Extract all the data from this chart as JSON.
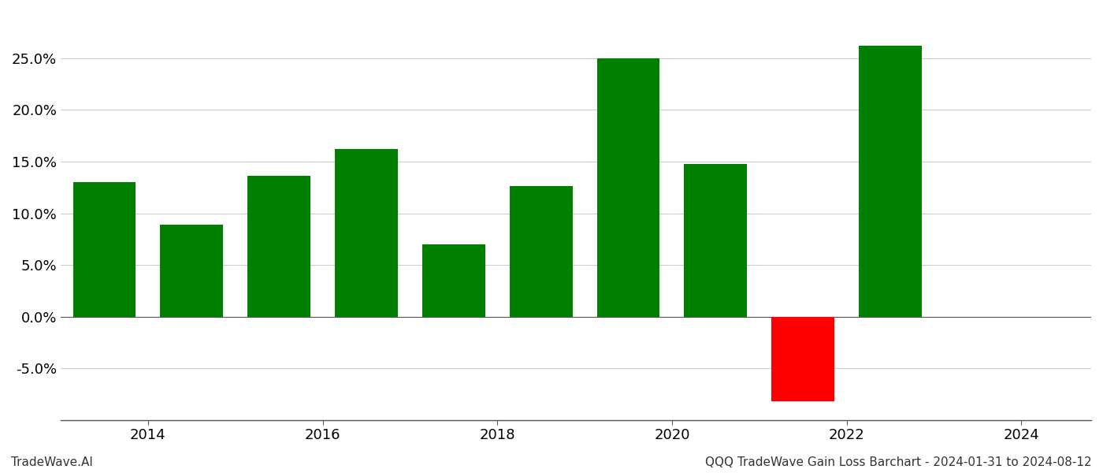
{
  "years": [
    2013.5,
    2014.5,
    2015.5,
    2016.5,
    2017.5,
    2018.5,
    2019.5,
    2020.5,
    2021.5,
    2022.5
  ],
  "values": [
    0.13,
    0.089,
    0.136,
    0.162,
    0.07,
    0.126,
    0.25,
    0.148,
    -0.082,
    0.262
  ],
  "bar_colors": [
    "#008000",
    "#008000",
    "#008000",
    "#008000",
    "#008000",
    "#008000",
    "#008000",
    "#008000",
    "#ff0000",
    "#008000"
  ],
  "ylim": [
    -0.1,
    0.295
  ],
  "yticks": [
    -0.05,
    0.0,
    0.05,
    0.1,
    0.15,
    0.2,
    0.25
  ],
  "xticks": [
    2014,
    2016,
    2018,
    2020,
    2022,
    2024
  ],
  "xlim": [
    2013.0,
    2024.8
  ],
  "xlabel": "",
  "ylabel": "",
  "footer_left": "TradeWave.AI",
  "footer_right": "QQQ TradeWave Gain Loss Barchart - 2024-01-31 to 2024-08-12",
  "grid_color": "#cccccc",
  "background_color": "#ffffff",
  "bar_width": 0.72,
  "footer_fontsize": 11,
  "tick_fontsize": 13
}
